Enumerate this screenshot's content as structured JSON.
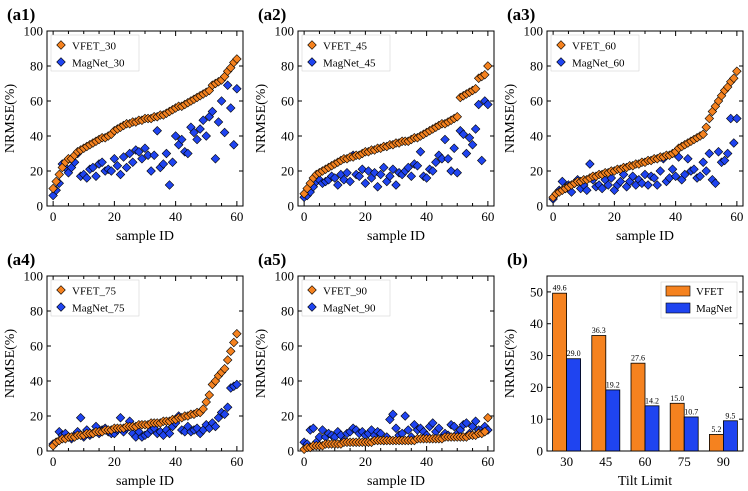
{
  "figure": {
    "panels": [
      {
        "label": "(a1)",
        "xlabel": "sample ID",
        "ylabel": "NRMSE(%)",
        "legend": [
          "VFET_30",
          "MagNet_30"
        ]
      },
      {
        "label": "(a2)",
        "xlabel": "sample ID",
        "ylabel": "NRMSE(%)",
        "legend": [
          "VFET_45",
          "MagNet_45"
        ]
      },
      {
        "label": "(a3)",
        "xlabel": "sample ID",
        "ylabel": "NRMSE(%)",
        "legend": [
          "VFET_60",
          "MagNet_60"
        ]
      },
      {
        "label": "(a4)",
        "xlabel": "sample ID",
        "ylabel": "NRMSE(%)",
        "legend": [
          "VFET_75",
          "MagNet_75"
        ]
      },
      {
        "label": "(a5)",
        "xlabel": "sample ID",
        "ylabel": "NRMSE(%)",
        "legend": [
          "VFET_90",
          "MagNet_90"
        ]
      },
      {
        "label": "(b)",
        "xlabel": "Tilt Limit",
        "ylabel": "NRMSE(%)",
        "legend": [
          "VFET",
          "MagNet"
        ]
      }
    ]
  },
  "colors": {
    "vfet": "#f5821f",
    "magnet": "#1f44f0",
    "outline": "#000000"
  },
  "chart_data": [
    {
      "type": "scatter",
      "title": "(a1)",
      "xlabel": "sample ID",
      "ylabel": "NRMSE(%)",
      "xlim": [
        -2,
        62
      ],
      "ylim": [
        0,
        100
      ],
      "xticks": [
        0,
        20,
        40,
        60
      ],
      "yticks": [
        0,
        20,
        40,
        60,
        80,
        100
      ],
      "legend_position": "top-left",
      "series": [
        {
          "name": "VFET_30",
          "marker": "diamond",
          "color": "#f5821f",
          "values": [
            10,
            14,
            18,
            22,
            25,
            27,
            27,
            29,
            31,
            32,
            33,
            34,
            35,
            36,
            37,
            38,
            39,
            39,
            40,
            41,
            43,
            44,
            45,
            46,
            47,
            47,
            48,
            48,
            49,
            49,
            50,
            50,
            50,
            51,
            51,
            52,
            52,
            53,
            54,
            55,
            56,
            57,
            57,
            58,
            59,
            60,
            61,
            62,
            63,
            64,
            65,
            66,
            69,
            70,
            71,
            72,
            74,
            77,
            79,
            82,
            84
          ]
        },
        {
          "name": "MagNet_30",
          "marker": "diamond",
          "color": "#1f44f0",
          "values": [
            6,
            9,
            13,
            24,
            22,
            19,
            22,
            25,
            30,
            17,
            18,
            16,
            21,
            22,
            17,
            24,
            25,
            20,
            21,
            20,
            27,
            23,
            18,
            28,
            22,
            30,
            25,
            32,
            31,
            27,
            33,
            29,
            20,
            29,
            43,
            22,
            24,
            30,
            12,
            25,
            40,
            35,
            38,
            31,
            30,
            45,
            42,
            38,
            44,
            49,
            40,
            51,
            54,
            27,
            48,
            60,
            42,
            69,
            56,
            35,
            67
          ]
        }
      ]
    },
    {
      "type": "scatter",
      "title": "(a2)",
      "xlabel": "sample ID",
      "ylabel": "NRMSE(%)",
      "xlim": [
        -2,
        62
      ],
      "ylim": [
        0,
        100
      ],
      "xticks": [
        0,
        20,
        40,
        60
      ],
      "yticks": [
        0,
        20,
        40,
        60,
        80,
        100
      ],
      "legend_position": "top-left",
      "series": [
        {
          "name": "VFET_45",
          "marker": "diamond",
          "color": "#f5821f",
          "values": [
            7,
            10,
            13,
            16,
            18,
            19,
            20,
            21,
            22,
            23,
            24,
            25,
            26,
            27,
            27,
            28,
            28,
            29,
            29,
            30,
            31,
            31,
            32,
            32,
            33,
            33,
            34,
            34,
            35,
            35,
            36,
            36,
            37,
            37,
            37,
            38,
            39,
            39,
            40,
            41,
            42,
            43,
            44,
            45,
            46,
            47,
            47,
            48,
            49,
            50,
            51,
            62,
            63,
            64,
            65,
            66,
            67,
            73,
            74,
            75,
            80
          ]
        },
        {
          "name": "MagNet_45",
          "marker": "diamond",
          "color": "#1f44f0",
          "values": [
            5,
            6,
            8,
            11,
            14,
            15,
            13,
            14,
            15,
            17,
            16,
            12,
            18,
            15,
            19,
            14,
            29,
            18,
            17,
            21,
            13,
            20,
            16,
            19,
            11,
            18,
            22,
            14,
            17,
            21,
            12,
            19,
            18,
            20,
            22,
            17,
            24,
            23,
            31,
            17,
            16,
            21,
            20,
            25,
            29,
            27,
            38,
            27,
            20,
            33,
            19,
            43,
            41,
            30,
            39,
            35,
            44,
            58,
            26,
            60,
            58
          ]
        }
      ]
    },
    {
      "type": "scatter",
      "title": "(a3)",
      "xlabel": "sample ID",
      "ylabel": "NRMSE(%)",
      "xlim": [
        -2,
        62
      ],
      "ylim": [
        0,
        100
      ],
      "xticks": [
        0,
        20,
        40,
        60
      ],
      "yticks": [
        0,
        20,
        40,
        60,
        80,
        100
      ],
      "legend_position": "top-left",
      "series": [
        {
          "name": "VFET_60",
          "marker": "diamond",
          "color": "#f5821f",
          "values": [
            5,
            7,
            8,
            9,
            10,
            11,
            12,
            13,
            14,
            14,
            15,
            15,
            16,
            17,
            17,
            18,
            18,
            19,
            19,
            20,
            20,
            21,
            21,
            22,
            22,
            23,
            23,
            24,
            24,
            25,
            25,
            26,
            26,
            27,
            27,
            28,
            28,
            29,
            29,
            30,
            31,
            33,
            34,
            35,
            36,
            37,
            38,
            39,
            40,
            41,
            45,
            50,
            54,
            57,
            60,
            63,
            66,
            68,
            71,
            73,
            77
          ]
        },
        {
          "name": "MagNet_60",
          "marker": "diamond",
          "color": "#1f44f0",
          "values": [
            4,
            7,
            9,
            14,
            10,
            12,
            8,
            13,
            15,
            10,
            12,
            9,
            24,
            15,
            11,
            12,
            10,
            15,
            12,
            16,
            9,
            12,
            14,
            18,
            11,
            14,
            17,
            12,
            15,
            13,
            18,
            12,
            17,
            16,
            12,
            20,
            27,
            14,
            16,
            21,
            17,
            28,
            15,
            18,
            27,
            20,
            21,
            16,
            17,
            25,
            20,
            30,
            15,
            13,
            31,
            25,
            26,
            30,
            50,
            36,
            50
          ]
        }
      ]
    },
    {
      "type": "scatter",
      "title": "(a4)",
      "xlabel": "sample ID",
      "ylabel": "NRMSE(%)",
      "xlim": [
        -2,
        62
      ],
      "ylim": [
        0,
        100
      ],
      "xticks": [
        0,
        20,
        40,
        60
      ],
      "yticks": [
        0,
        20,
        40,
        60,
        80,
        100
      ],
      "legend_position": "top-left",
      "series": [
        {
          "name": "VFET_75",
          "marker": "diamond",
          "color": "#f5821f",
          "values": [
            3,
            5,
            6,
            7,
            7,
            8,
            8,
            8,
            9,
            9,
            9,
            10,
            10,
            10,
            11,
            11,
            11,
            12,
            12,
            12,
            13,
            13,
            13,
            13,
            14,
            14,
            14,
            14,
            15,
            15,
            15,
            15,
            16,
            16,
            16,
            16,
            17,
            17,
            17,
            18,
            18,
            19,
            19,
            20,
            20,
            21,
            21,
            22,
            22,
            24,
            28,
            32,
            38,
            40,
            43,
            45,
            47,
            52,
            57,
            62,
            67
          ]
        },
        {
          "name": "MagNet_75",
          "marker": "diamond",
          "color": "#1f44f0",
          "values": [
            4,
            5,
            11,
            9,
            10,
            8,
            7,
            9,
            11,
            19,
            8,
            12,
            9,
            10,
            14,
            10,
            12,
            13,
            11,
            10,
            10,
            12,
            19,
            11,
            13,
            17,
            10,
            8,
            11,
            8,
            9,
            10,
            12,
            13,
            10,
            11,
            9,
            12,
            10,
            14,
            16,
            20,
            12,
            11,
            14,
            11,
            12,
            13,
            10,
            12,
            15,
            13,
            16,
            14,
            19,
            22,
            21,
            25,
            36,
            37,
            38
          ]
        }
      ]
    },
    {
      "type": "scatter",
      "title": "(a5)",
      "xlabel": "sample ID",
      "ylabel": "NRMSE(%)",
      "xlim": [
        -2,
        62
      ],
      "ylim": [
        0,
        100
      ],
      "xticks": [
        0,
        20,
        40,
        60
      ],
      "yticks": [
        0,
        20,
        40,
        60,
        80,
        100
      ],
      "legend_position": "top-left",
      "series": [
        {
          "name": "VFET_90",
          "marker": "diamond",
          "color": "#f5821f",
          "values": [
            1,
            2,
            2,
            3,
            3,
            3,
            3,
            4,
            4,
            4,
            4,
            4,
            4,
            5,
            5,
            5,
            5,
            5,
            5,
            5,
            5,
            5,
            5,
            6,
            6,
            6,
            6,
            6,
            6,
            6,
            6,
            6,
            6,
            6,
            6,
            6,
            6,
            7,
            7,
            7,
            7,
            7,
            7,
            7,
            7,
            7,
            8,
            8,
            8,
            8,
            8,
            8,
            8,
            8,
            9,
            9,
            9,
            10,
            10,
            11,
            19
          ]
        },
        {
          "name": "MagNet_90",
          "marker": "diamond",
          "color": "#1f44f0",
          "values": [
            5,
            4,
            12,
            13,
            5,
            8,
            12,
            8,
            10,
            9,
            8,
            11,
            9,
            6,
            10,
            11,
            13,
            12,
            10,
            11,
            9,
            10,
            12,
            9,
            11,
            10,
            6,
            8,
            18,
            21,
            13,
            9,
            10,
            20,
            12,
            8,
            15,
            12,
            13,
            11,
            9,
            14,
            16,
            11,
            13,
            8,
            10,
            9,
            15,
            14,
            10,
            12,
            15,
            16,
            10,
            14,
            17,
            12,
            12,
            14,
            12
          ]
        }
      ]
    },
    {
      "type": "bar",
      "title": "(b)",
      "xlabel": "Tilt Limit",
      "ylabel": "NRMSE(%)",
      "categories": [
        "30",
        "45",
        "60",
        "75",
        "90"
      ],
      "ylim": [
        0,
        55
      ],
      "yticks": [
        0,
        10,
        20,
        30,
        40,
        50
      ],
      "legend_position": "top-right",
      "series": [
        {
          "name": "VFET",
          "color": "#f5821f",
          "values": [
            49.6,
            36.3,
            27.6,
            15.0,
            5.2
          ],
          "labels": [
            "49.6",
            "36.3",
            "27.6",
            "15.0",
            "5.2"
          ]
        },
        {
          "name": "MagNet",
          "color": "#1f44f0",
          "values": [
            29.0,
            19.2,
            14.2,
            10.7,
            9.5
          ],
          "labels": [
            "29.0",
            "19.2",
            "14.2",
            "10.7",
            "9.5"
          ]
        }
      ]
    }
  ]
}
